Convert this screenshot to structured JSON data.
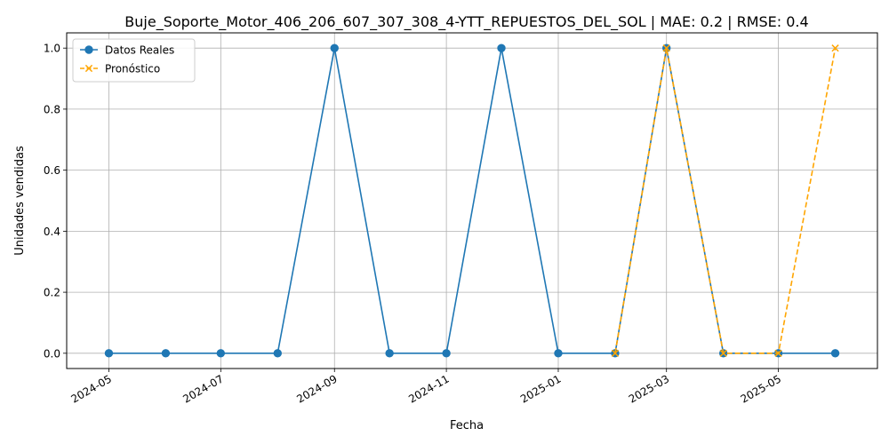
{
  "chart_data": {
    "type": "line",
    "title": "Buje_Soporte_Motor_406_206_607_307_308_4-YTT_REPUESTOS_DEL_SOL | MAE: 0.2 | RMSE: 0.4",
    "xlabel": "Fecha",
    "ylabel": "Unidades vendidas",
    "xlim": [
      "2024-04-08",
      "2025-06-24"
    ],
    "ylim": [
      -0.05,
      1.05
    ],
    "x_ticks": [
      "2024-05",
      "2024-07",
      "2024-09",
      "2024-11",
      "2025-01",
      "2025-03",
      "2025-05"
    ],
    "y_ticks": [
      "0.0",
      "0.2",
      "0.4",
      "0.6",
      "0.8",
      "1.0"
    ],
    "grid": true,
    "legend_position": "upper-left",
    "series": [
      {
        "name": "Datos Reales",
        "color": "#1f77b4",
        "style": "solid",
        "marker": "circle",
        "x": [
          "2024-05-01",
          "2024-06-01",
          "2024-07-01",
          "2024-08-01",
          "2024-09-01",
          "2024-10-01",
          "2024-11-01",
          "2024-12-01",
          "2025-01-01",
          "2025-02-01",
          "2025-03-01",
          "2025-04-01",
          "2025-05-01",
          "2025-06-01"
        ],
        "values": [
          0,
          0,
          0,
          0,
          1,
          0,
          0,
          1,
          0,
          0,
          1,
          0,
          0,
          0
        ]
      },
      {
        "name": "Pronóstico",
        "color": "#ffa500",
        "style": "dashed",
        "marker": "x",
        "x": [
          "2025-02-01",
          "2025-03-01",
          "2025-04-01",
          "2025-05-01",
          "2025-06-01"
        ],
        "values": [
          0,
          1,
          0,
          0,
          1
        ]
      }
    ]
  }
}
